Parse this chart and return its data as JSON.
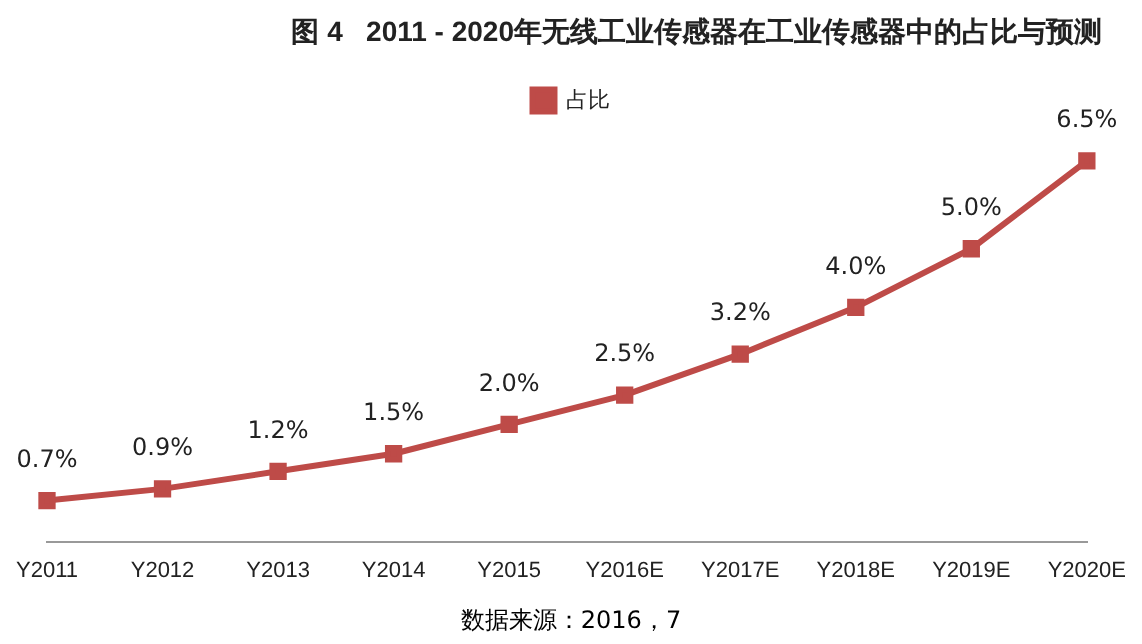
{
  "chart_data": {
    "type": "line",
    "title": "图 4   2011 - 2020年无线工业传感器在工业传感器中的占比与预测",
    "categories": [
      "Y2011",
      "Y2012",
      "Y2013",
      "Y2014",
      "Y2015",
      "Y2016E",
      "Y2017E",
      "Y2018E",
      "Y2019E",
      "Y2020E"
    ],
    "series": [
      {
        "name": "占比",
        "color": "#be4b48",
        "values": [
          0.7,
          0.9,
          1.2,
          1.5,
          2.0,
          2.5,
          3.2,
          4.0,
          5.0,
          6.5
        ],
        "value_labels": [
          "0.7%",
          "0.9%",
          "1.2%",
          "1.5%",
          "2.0%",
          "2.5%",
          "3.2%",
          "4.0%",
          "5.0%",
          "6.5%"
        ]
      }
    ],
    "marker": "square",
    "line_style": "solid",
    "grid": false,
    "legend": "top",
    "tick_labels": "x",
    "annotations": [
      "数据来源：2016，7"
    ]
  }
}
